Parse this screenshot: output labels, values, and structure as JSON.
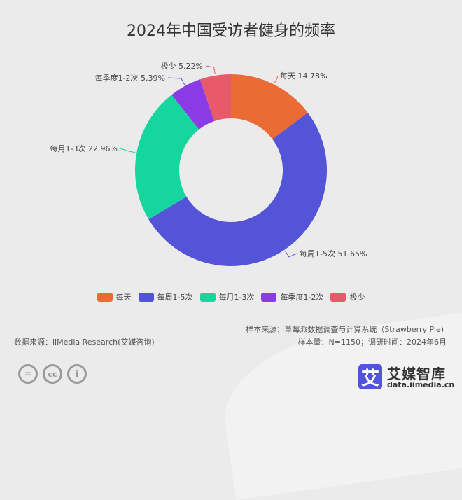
{
  "title": "2024年中国受访者健身的频率",
  "chart_data": {
    "type": "pie",
    "donut": true,
    "title": "2024年中国受访者健身的频率",
    "categories": [
      "每天",
      "每周1-5次",
      "每月1-3次",
      "每季度1-2次",
      "极少"
    ],
    "values": [
      14.78,
      51.65,
      22.96,
      5.39,
      5.22
    ],
    "labels": [
      "每天 14.78%",
      "每周1-5次 51.65%",
      "每月1-3次 22.96%",
      "每季度1-2次 5.39%",
      "极少 5.22%"
    ],
    "colors": [
      "#EB6B34",
      "#5454D8",
      "#16D6A0",
      "#8A3BE6",
      "#E85A6A"
    ],
    "legend_position": "bottom"
  },
  "footer": {
    "source_left": "数据来源：iiMedia Research(艾媒咨询)",
    "sample_source": "样本来源：草莓派数据调查与计算系统（Strawberry Pie)",
    "sample_size": "样本量：N=1150；调研时间：2024年6月"
  },
  "license_icons": [
    "=",
    "cc",
    "i"
  ],
  "logo": {
    "mark": "艾",
    "name": "艾媒智库",
    "url": "data.iimedia.cn"
  }
}
